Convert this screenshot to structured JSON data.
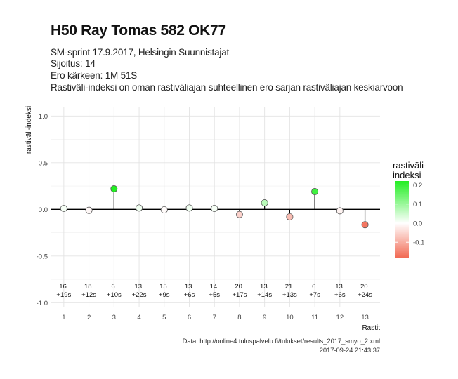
{
  "header": {
    "title": "H50 Ray Tomas 582 OK77",
    "lines": [
      "SM-sprint 17.9.2017, Helsingin Suunnistajat",
      "Sijoitus: 14",
      "Ero kärkeen: 1M 51S",
      "Rastiväli-indeksi on oman rastiväliajan suhteellinen ero sarjan rastiväliajan keskiarvoon"
    ]
  },
  "chart_data": {
    "type": "scatter",
    "xlabel": "Rastit",
    "ylabel": "rastiväli-indeksi",
    "xlim": [
      0.5,
      13.6
    ],
    "ylim": [
      -1.05,
      1.1
    ],
    "yticks": [
      -1.0,
      -0.5,
      0.0,
      0.5,
      1.0
    ],
    "ytick_labels": [
      "-1.0",
      "-0.5",
      "0.0",
      "0.5",
      "1.0"
    ],
    "xticks": [
      1,
      2,
      3,
      4,
      5,
      6,
      7,
      8,
      9,
      10,
      11,
      12,
      13
    ],
    "grid": true,
    "points": [
      {
        "x": 1,
        "y": 0.01,
        "rank": "16.",
        "diff": "+19s"
      },
      {
        "x": 2,
        "y": -0.01,
        "rank": "18.",
        "diff": "+12s"
      },
      {
        "x": 3,
        "y": 0.22,
        "rank": "6.",
        "diff": "+10s"
      },
      {
        "x": 4,
        "y": 0.015,
        "rank": "13.",
        "diff": "+22s"
      },
      {
        "x": 5,
        "y": -0.005,
        "rank": "15.",
        "diff": "+9s"
      },
      {
        "x": 6,
        "y": 0.015,
        "rank": "13.",
        "diff": "+6s"
      },
      {
        "x": 7,
        "y": 0.01,
        "rank": "14.",
        "diff": "+5s"
      },
      {
        "x": 8,
        "y": -0.055,
        "rank": "20.",
        "diff": "+17s"
      },
      {
        "x": 9,
        "y": 0.07,
        "rank": "13.",
        "diff": "+14s"
      },
      {
        "x": 10,
        "y": -0.08,
        "rank": "21.",
        "diff": "+13s"
      },
      {
        "x": 11,
        "y": 0.19,
        "rank": "6.",
        "diff": "+7s"
      },
      {
        "x": 12,
        "y": -0.015,
        "rank": "13.",
        "diff": "+6s"
      },
      {
        "x": 13,
        "y": -0.165,
        "rank": "20.",
        "diff": "+24s"
      }
    ],
    "label_y": -0.9,
    "legend": {
      "title_lines": [
        "rastiväli-",
        "indeksi"
      ],
      "placement": "right",
      "range": [
        -0.18,
        0.22
      ],
      "ticks": [
        0.2,
        0.1,
        0.0,
        -0.1
      ],
      "tick_labels": [
        "0.2",
        "0.1",
        "0.0",
        "-0.1"
      ]
    },
    "colors": {
      "high": "#22ee22",
      "mid": "#ffffff",
      "low": "#f26a54",
      "zero_line": "#000000",
      "grid": "#e3e3e3",
      "point_stroke": "#555555"
    }
  },
  "caption": {
    "source": "Data: http://online4.tulospalvelu.fi/tulokset/results_2017_smyo_2.xml",
    "timestamp": "2017-09-24 21:43:37"
  }
}
